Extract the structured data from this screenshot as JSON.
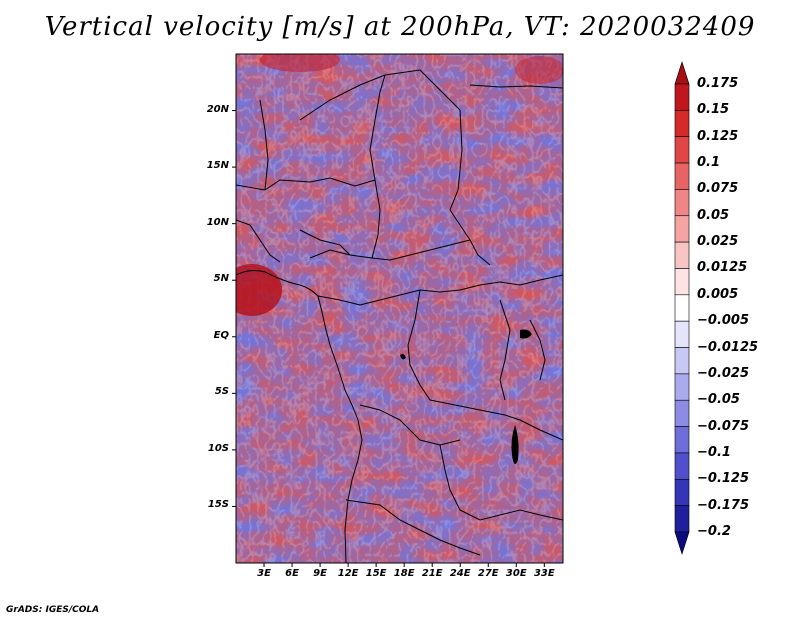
{
  "title": "Vertical velocity [m/s] at 200hPa, VT: 2020032409",
  "credit": "GrADS: IGES/COLA",
  "map": {
    "variable": "Vertical velocity",
    "units": "m/s",
    "level": "200hPa",
    "valid_time": "2020032409",
    "lon_range": [
      0,
      35
    ],
    "lat_range": [
      -20,
      25
    ]
  },
  "lat_ticks": [
    {
      "label": "20N",
      "value": 20
    },
    {
      "label": "15N",
      "value": 15
    },
    {
      "label": "10N",
      "value": 10
    },
    {
      "label": "5N",
      "value": 5
    },
    {
      "label": "EQ",
      "value": 0
    },
    {
      "label": "5S",
      "value": -5
    },
    {
      "label": "10S",
      "value": -10
    },
    {
      "label": "15S",
      "value": -15
    }
  ],
  "lon_ticks": [
    {
      "label": "3E",
      "value": 3
    },
    {
      "label": "6E",
      "value": 6
    },
    {
      "label": "9E",
      "value": 9
    },
    {
      "label": "12E",
      "value": 12
    },
    {
      "label": "15E",
      "value": 15
    },
    {
      "label": "18E",
      "value": 18
    },
    {
      "label": "21E",
      "value": 21
    },
    {
      "label": "24E",
      "value": 24
    },
    {
      "label": "27E",
      "value": 27
    },
    {
      "label": "30E",
      "value": 30
    },
    {
      "label": "33E",
      "value": 33
    }
  ],
  "colorbar": {
    "labels": [
      "0.175",
      "0.15",
      "0.125",
      "0.1",
      "0.075",
      "0.05",
      "0.025",
      "0.0125",
      "0.005",
      "−0.005",
      "−0.0125",
      "−0.025",
      "−0.05",
      "−0.075",
      "−0.1",
      "−0.125",
      "−0.175",
      "−0.2"
    ],
    "colors": [
      "#a50f15",
      "#c0171e",
      "#d42a2a",
      "#e04646",
      "#e86464",
      "#f08585",
      "#f5a3a3",
      "#f9c4c4",
      "#fde3e3",
      "#ffffff",
      "#e4e4fb",
      "#c8c8f5",
      "#aaaaef",
      "#8c8ce6",
      "#6e6edb",
      "#5050cc",
      "#3535b8",
      "#20209e",
      "#0c0c80"
    ]
  }
}
